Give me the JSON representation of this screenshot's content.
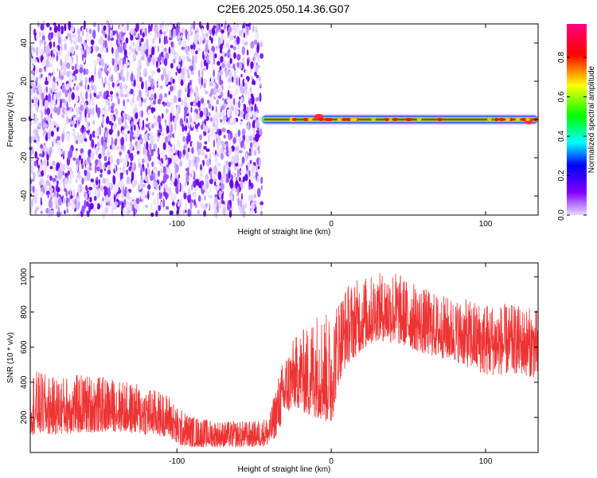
{
  "figure_title": "C2E6.2025.050.14.36.G07",
  "chart_data": [
    {
      "type": "heatmap",
      "xlabel": "Height of straight line (km)",
      "ylabel": "Frequency (Hz)",
      "xlim": [
        -195,
        134
      ],
      "ylim": [
        -50,
        50
      ],
      "xticks": [
        -100,
        0,
        100
      ],
      "yticks": [
        -40,
        -20,
        0,
        20,
        40
      ],
      "colorbar": {
        "label": "Normalized spectral amplitude",
        "range": [
          0.0,
          0.97
        ],
        "ticks": [
          0.0,
          0.2,
          0.4,
          0.6,
          0.8
        ],
        "colormap": [
          "#e0d0ff",
          "#8000ff",
          "#0000ff",
          "#00ffff",
          "#00ff00",
          "#ffff00",
          "#ff0000",
          "#ff0080"
        ]
      },
      "regions": [
        {
          "x_range": [
            -195,
            -45
          ],
          "description": "broadband noise",
          "amplitude_range": [
            0.0,
            0.3
          ]
        },
        {
          "x_range": [
            -45,
            134
          ],
          "line_frequency_hz": 0,
          "peak_amplitude": 0.97
        }
      ]
    },
    {
      "type": "line",
      "xlabel": "Height of straight line (km)",
      "ylabel": "SNR (10 * v/v)",
      "xlim": [
        -195,
        134
      ],
      "ylim": [
        0,
        1080
      ],
      "xticks": [
        -100,
        0,
        100
      ],
      "yticks": [
        200,
        400,
        600,
        800,
        1000
      ],
      "color": "#ee3333",
      "series": [
        {
          "x": [
            -195,
            -180,
            -160,
            -140,
            -120,
            -105,
            -100,
            -90,
            -80,
            -70,
            -60,
            -50,
            -40,
            -35,
            -30,
            -25,
            -20,
            -15,
            -10,
            -5,
            0,
            5,
            10,
            20,
            30,
            40,
            50,
            60,
            70,
            80,
            90,
            100,
            110,
            120,
            134
          ],
          "low": [
            100,
            100,
            110,
            120,
            100,
            90,
            40,
            30,
            30,
            30,
            30,
            30,
            40,
            100,
            200,
            250,
            250,
            200,
            200,
            180,
            150,
            400,
            500,
            580,
            640,
            620,
            600,
            560,
            540,
            520,
            480,
            440,
            440,
            450,
            420
          ],
          "high": [
            480,
            430,
            450,
            420,
            380,
            330,
            260,
            210,
            190,
            180,
            180,
            180,
            210,
            420,
            560,
            640,
            700,
            720,
            820,
            800,
            780,
            900,
            960,
            1000,
            1020,
            1050,
            980,
            940,
            900,
            880,
            870,
            860,
            850,
            840,
            820
          ]
        }
      ]
    }
  ]
}
